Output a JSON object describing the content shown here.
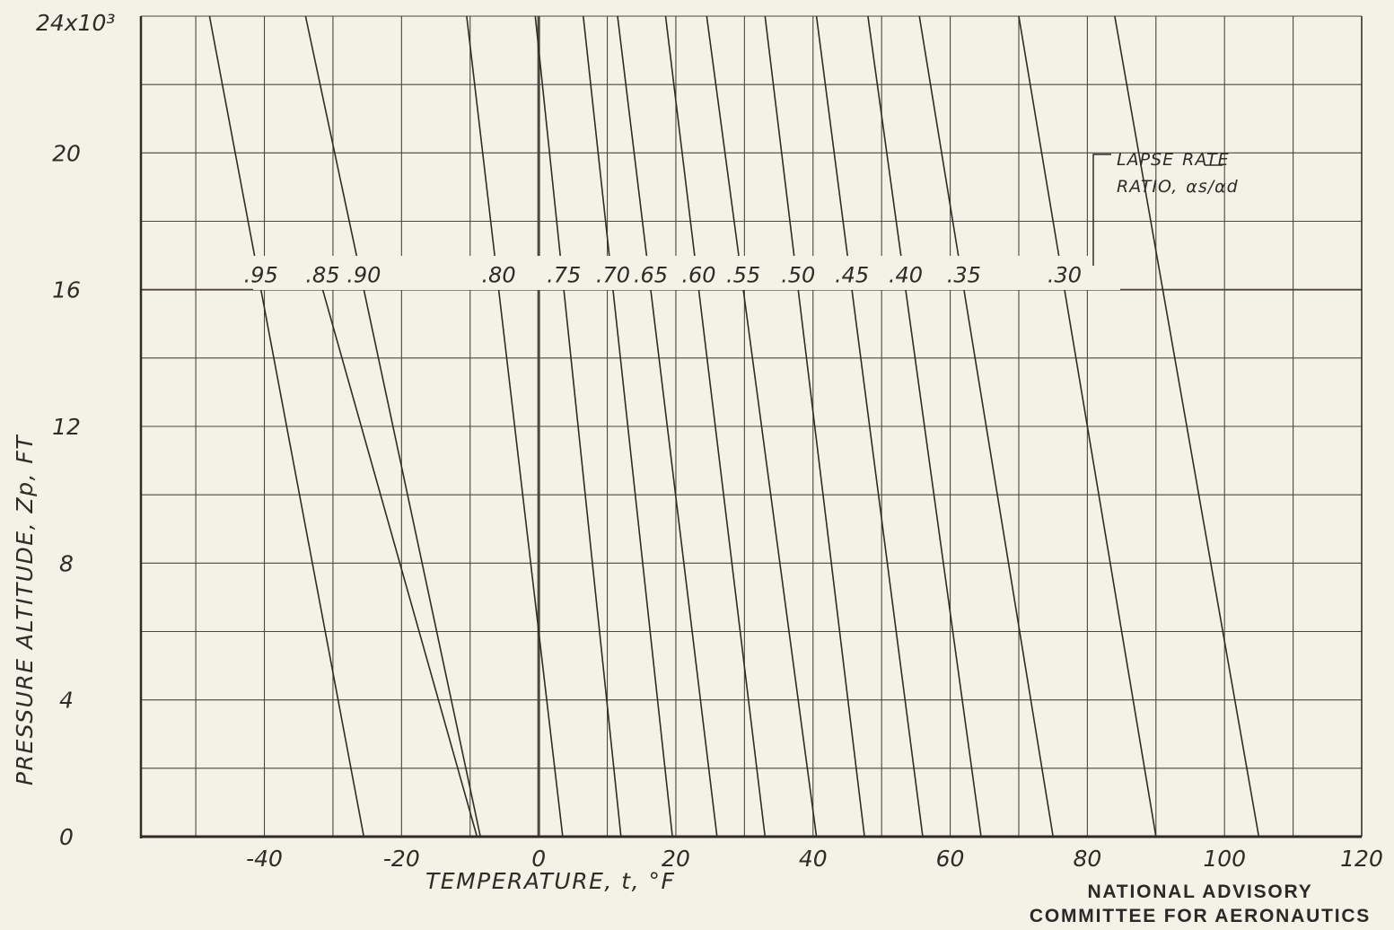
{
  "chart_data": {
    "type": "line",
    "title": "",
    "xlabel": "TEMPERATURE, t, °F",
    "ylabel": "PRESSURE ALTITUDE, Zp, FT",
    "y_multiplier_label": "24x10³",
    "xlim": [
      -58,
      120
    ],
    "ylim": [
      0,
      24000
    ],
    "x_ticks": [
      "-40",
      "-20",
      "0",
      "20",
      "40",
      "60",
      "80",
      "100",
      "120"
    ],
    "y_ticks": [
      "0",
      "4",
      "8",
      "12",
      "16",
      "20"
    ],
    "grid": true,
    "legend": "inline labels along the 16,000 ft line",
    "annotation": "LAPSE RATE RATIO, αs/αd",
    "series": [
      {
        "name": ".95",
        "points": [
          [
            -25.5,
            0
          ],
          [
            -48,
            24000
          ]
        ]
      },
      {
        "name": ".90",
        "points": [
          [
            -8.5,
            0
          ],
          [
            -34,
            24000
          ]
        ]
      },
      {
        "name": ".85",
        "points": [
          [
            -9.0,
            0
          ],
          [
            -31.5,
            16000
          ]
        ]
      },
      {
        "name": ".80",
        "points": [
          [
            3.5,
            0
          ],
          [
            -10.5,
            24000
          ]
        ]
      },
      {
        "name": ".75",
        "points": [
          [
            12.0,
            0
          ],
          [
            -0.5,
            24000
          ]
        ]
      },
      {
        "name": ".70",
        "points": [
          [
            19.5,
            0
          ],
          [
            6.5,
            24000
          ]
        ]
      },
      {
        "name": ".65",
        "points": [
          [
            26.0,
            0
          ],
          [
            11.5,
            24000
          ]
        ]
      },
      {
        "name": ".60",
        "points": [
          [
            33.0,
            0
          ],
          [
            18.5,
            24000
          ]
        ]
      },
      {
        "name": ".55",
        "points": [
          [
            40.5,
            0
          ],
          [
            24.5,
            24000
          ]
        ]
      },
      {
        "name": ".50",
        "points": [
          [
            47.5,
            0
          ],
          [
            33.0,
            24000
          ]
        ]
      },
      {
        "name": ".45",
        "points": [
          [
            56.0,
            0
          ],
          [
            40.5,
            24000
          ]
        ]
      },
      {
        "name": ".40",
        "points": [
          [
            64.5,
            0
          ],
          [
            48.0,
            24000
          ]
        ]
      },
      {
        "name": ".35",
        "points": [
          [
            75.0,
            0
          ],
          [
            55.5,
            24000
          ]
        ]
      },
      {
        "name": ".30",
        "points": [
          [
            90.0,
            0
          ],
          [
            70.0,
            24000
          ]
        ]
      },
      {
        "name": "",
        "points": [
          [
            105.0,
            0
          ],
          [
            84.0,
            24000
          ]
        ]
      }
    ]
  },
  "footer": {
    "line1": "NATIONAL ADVISORY",
    "line2": "COMMITTEE FOR AERONAUTICS"
  }
}
